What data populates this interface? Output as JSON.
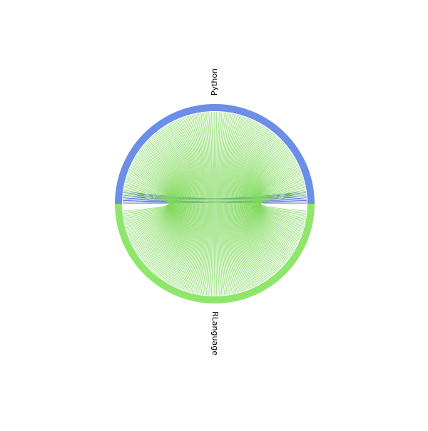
{
  "chart_data": {
    "type": "chord",
    "groups": [
      {
        "name": "Python",
        "color": "#6b8ee8"
      },
      {
        "name": "RLanguage",
        "color": "#8ee66b"
      }
    ],
    "matrix": [
      [
        10,
        210
      ],
      [
        210,
        0
      ]
    ],
    "chord_colors": {
      "Python-Python": "#3a57d9",
      "Python-RLanguage": "#7fd95a"
    },
    "legend": "none",
    "grid": false
  }
}
